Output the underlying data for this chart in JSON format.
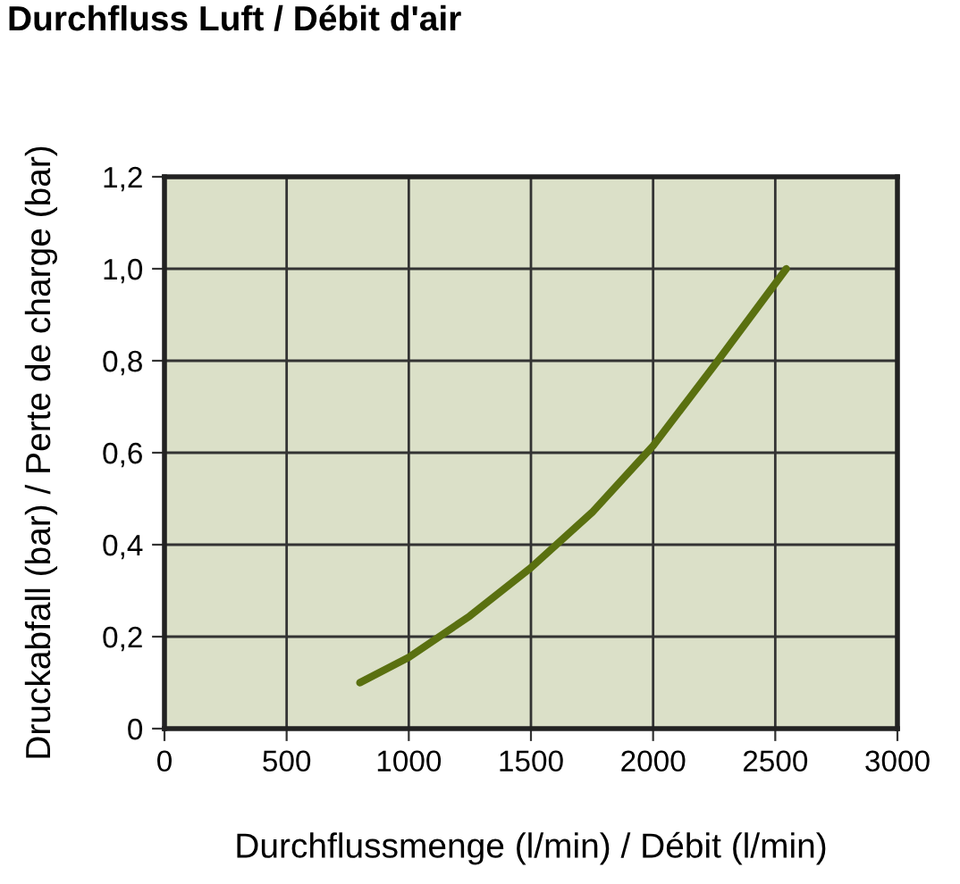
{
  "chart_data": {
    "type": "line",
    "title": "Durchfluss Luft / Débit d'air",
    "xlabel": "Durchflussmenge (l/min) / Débit (l/min)",
    "ylabel": "Druckabfall (bar) / Perte de charge (bar)",
    "series": [
      {
        "color": "#5a7010",
        "x": [
          800,
          1000,
          1250,
          1500,
          1750,
          2000,
          2265,
          2545
        ],
        "values": [
          0.1,
          0.155,
          0.245,
          0.35,
          0.47,
          0.615,
          0.8,
          1.0
        ]
      }
    ],
    "xlim": [
      0,
      3000
    ],
    "xticks": [
      0,
      500,
      1000,
      1500,
      2000,
      2500,
      3000
    ],
    "ylim": [
      0,
      1.2
    ],
    "yticks": [
      {
        "value": 0,
        "label": "0"
      },
      {
        "value": 0.2,
        "label": "0,2"
      },
      {
        "value": 0.4,
        "label": "0,4"
      },
      {
        "value": 0.6,
        "label": "0,6"
      },
      {
        "value": 0.8,
        "label": "0,8"
      },
      {
        "value": 1.0,
        "label": "1,0"
      },
      {
        "value": 1.2,
        "label": "1,2"
      }
    ],
    "grid": true,
    "legend": false,
    "marker": "none",
    "line_style": "solid"
  }
}
